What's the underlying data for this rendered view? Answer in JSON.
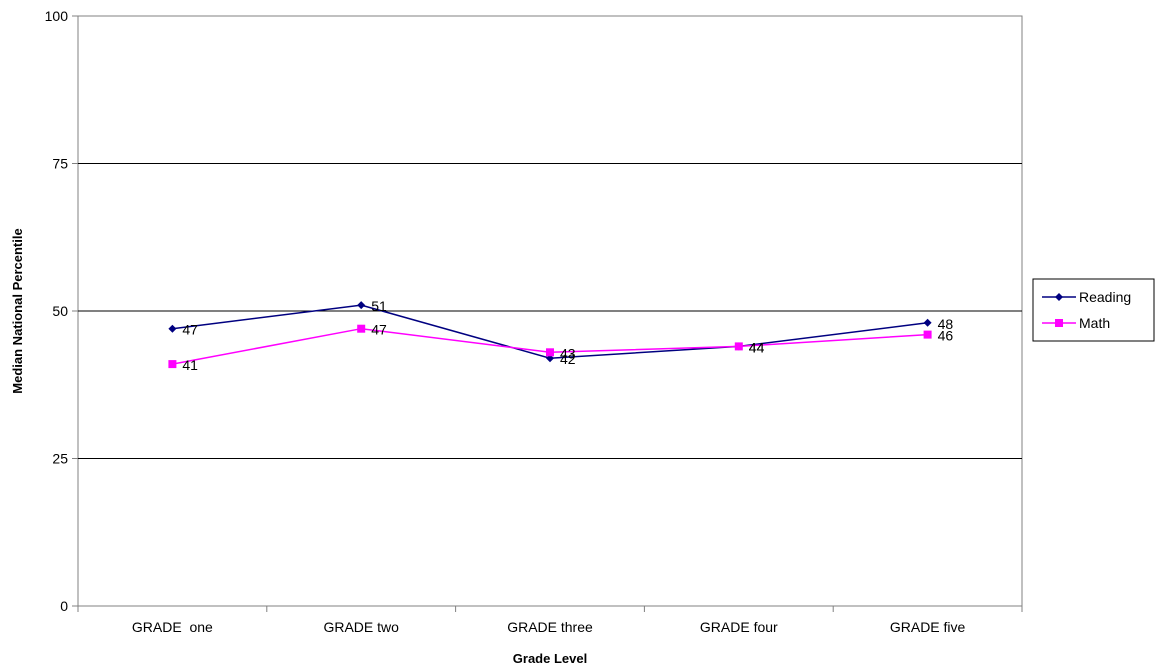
{
  "chart_data": {
    "type": "line",
    "title": "",
    "xlabel": "Grade Level",
    "ylabel": "Median National Percentile",
    "ylim": [
      0,
      100
    ],
    "yticks": [
      0,
      25,
      50,
      75,
      100
    ],
    "grid": true,
    "legend_position": "right",
    "categories": [
      "GRADE  one",
      "GRADE two",
      "GRADE three",
      "GRADE four",
      "GRADE five"
    ],
    "series": [
      {
        "name": "Reading",
        "values": [
          47,
          51,
          42,
          44,
          48
        ],
        "color": "#000080",
        "marker": "diamond"
      },
      {
        "name": "Math",
        "values": [
          41,
          47,
          43,
          44,
          46
        ],
        "color": "#FF00FF",
        "marker": "square"
      }
    ]
  }
}
